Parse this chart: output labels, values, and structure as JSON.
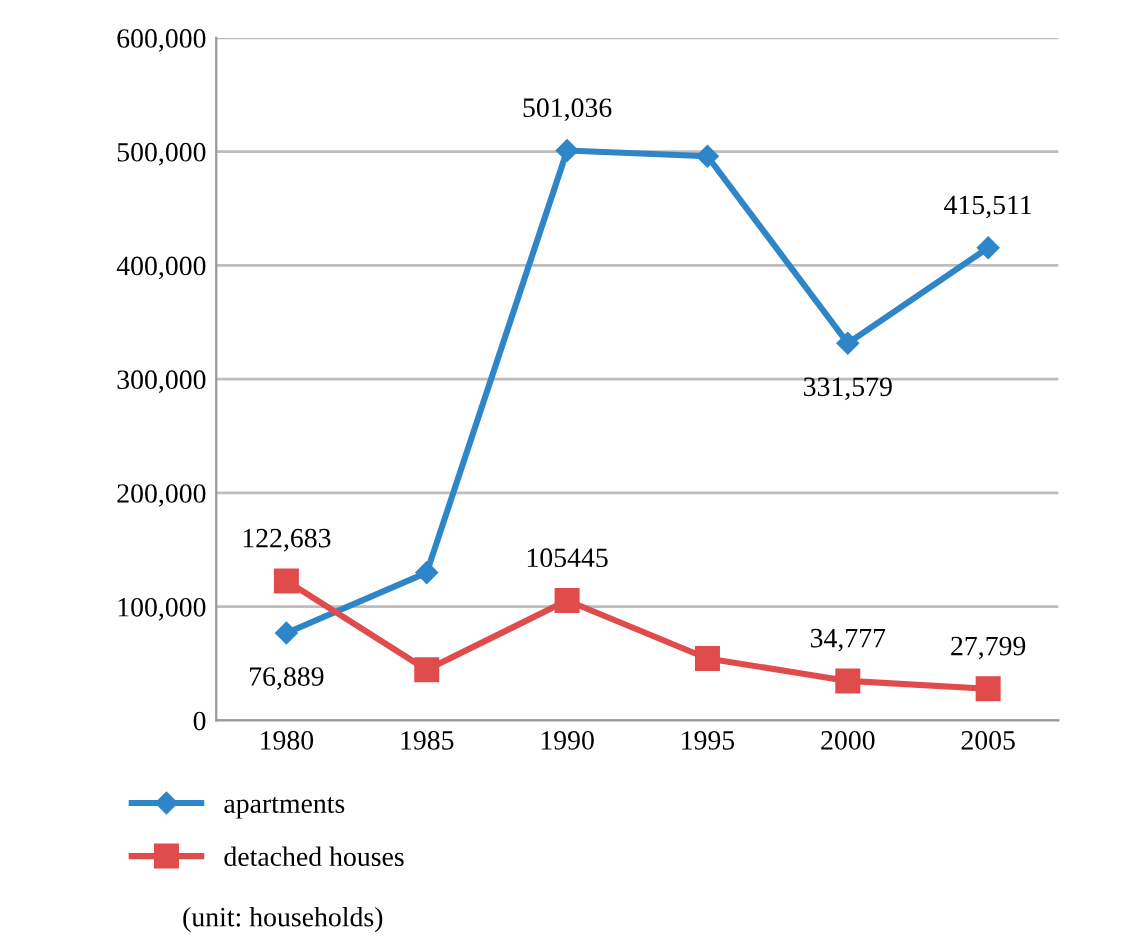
{
  "chart_data": {
    "type": "line",
    "categories": [
      "1980",
      "1985",
      "1990",
      "1995",
      "2000",
      "2005"
    ],
    "series": [
      {
        "name": "apartments",
        "color": "#2e86c9",
        "marker": "diamond",
        "values": [
          76889,
          130000,
          501036,
          496000,
          331579,
          415511
        ],
        "value_labels": [
          "76,889",
          null,
          "501,036",
          null,
          "331,579",
          "415,511"
        ]
      },
      {
        "name": "detached houses",
        "color": "#e04b4b",
        "marker": "square",
        "values": [
          122683,
          44500,
          105445,
          54500,
          34777,
          27799
        ],
        "value_labels": [
          "122,683",
          null,
          "105445",
          null,
          "34,777",
          "27,799"
        ]
      }
    ],
    "ylim": [
      0,
      600000
    ],
    "yticks": [
      {
        "value": 0,
        "label": "0"
      },
      {
        "value": 100000,
        "label": "100,000"
      },
      {
        "value": 200000,
        "label": "200,000"
      },
      {
        "value": 300000,
        "label": "300,000"
      },
      {
        "value": 400000,
        "label": "400,000"
      },
      {
        "value": 500000,
        "label": "500,000"
      },
      {
        "value": 600000,
        "label": "600,000"
      }
    ],
    "grid": "y",
    "legend": "bottom left",
    "line_style": "solid",
    "annotations": [
      "(unit: households)"
    ]
  }
}
